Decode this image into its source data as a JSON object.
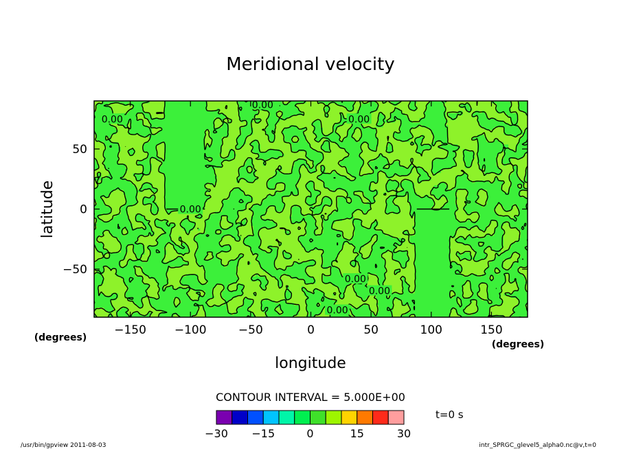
{
  "chart_data": {
    "type": "heatmap",
    "subtype": "filled-contour map",
    "title": "Meridional velocity",
    "xlabel": "longitude",
    "ylabel": "latitude",
    "x_unit": "(degrees)",
    "y_unit": "(degrees)",
    "xlim": [
      -180,
      180
    ],
    "ylim": [
      -90,
      90
    ],
    "x_ticks": [
      -150,
      -100,
      -50,
      0,
      50,
      100,
      150
    ],
    "y_ticks": [
      50,
      0,
      -50
    ],
    "contour_interval_text": "CONTOUR INTERVAL = 5.000E+00",
    "time_text": "t=0 s",
    "contour_labels": [
      {
        "text": "0.00",
        "lon": -40,
        "lat": 87
      },
      {
        "text": "0.00",
        "lon": -165,
        "lat": 75
      },
      {
        "text": "0.00",
        "lon": 40,
        "lat": 75
      },
      {
        "text": "0.00",
        "lon": -100,
        "lat": 0
      },
      {
        "text": "0.00",
        "lon": 37,
        "lat": -58
      },
      {
        "text": "0.00",
        "lon": 57,
        "lat": -68
      },
      {
        "text": "0.00",
        "lon": 22,
        "lat": -84
      }
    ],
    "bands": [
      {
        "lon_min": -180,
        "lon_max": -120,
        "pattern": "noisy"
      },
      {
        "lon_min": -120,
        "lon_max": -88,
        "pattern": "smooth-north",
        "split_lat": 0
      },
      {
        "lon_min": -88,
        "lon_max": 88,
        "pattern": "noisy"
      },
      {
        "lon_min": 88,
        "lon_max": 115,
        "pattern": "smooth-south",
        "split_lat": 0
      },
      {
        "lon_min": 115,
        "lon_max": 180,
        "pattern": "noisy"
      }
    ],
    "colorbar": {
      "ticks": [
        -30,
        -15,
        0,
        15,
        30
      ],
      "range": [
        -30,
        30
      ],
      "colors": [
        "#7a00b0",
        "#0000c8",
        "#0050ff",
        "#00c4ff",
        "#00f5a8",
        "#00ef50",
        "#3fe02a",
        "#9ef500",
        "#ffd400",
        "#ff7a00",
        "#ff2a1a",
        "#ff9e9e"
      ]
    },
    "fill_colors": {
      "neutral_green": "#3cf03a",
      "positive_green": "#8ef22a"
    }
  },
  "footer": {
    "left": "/usr/bin/gpview   2011-08-03",
    "right": "intr_SPRGC_glevel5_alpha0.nc@v,t=0"
  }
}
